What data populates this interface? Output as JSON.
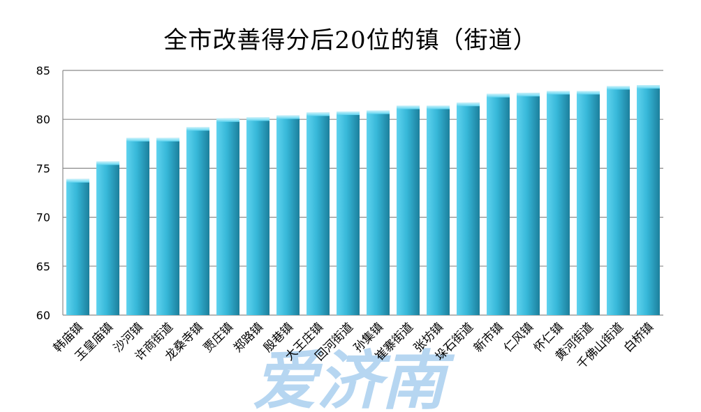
{
  "chart_data": {
    "type": "bar",
    "title": "全市改善得分后20位的镇（街道）",
    "xlabel": "",
    "ylabel": "",
    "ylim": [
      60,
      85
    ],
    "yticks": [
      60,
      65,
      70,
      75,
      80,
      85
    ],
    "grid": true,
    "legend": "none",
    "categories": [
      "韩庙镇",
      "玉皇庙镇",
      "沙河镇",
      "许商街道",
      "龙桑寺镇",
      "贾庄镇",
      "郑路镇",
      "殷巷镇",
      "大王庄镇",
      "回河街道",
      "孙集镇",
      "崔寨街道",
      "张坊镇",
      "垛石街道",
      "新市镇",
      "仁风镇",
      "怀仁镇",
      "黄河街道",
      "千佛山街道",
      "白桥镇"
    ],
    "values": [
      73.9,
      75.7,
      78.1,
      78.1,
      79.2,
      80.1,
      80.2,
      80.4,
      80.7,
      80.8,
      80.9,
      81.4,
      81.4,
      81.7,
      82.6,
      82.7,
      82.9,
      82.9,
      83.4,
      83.5
    ],
    "colors": {
      "bar_light": "#5fd3ef",
      "bar_mid": "#36b7d8",
      "bar_dark": "#1c7f9c",
      "grid": "#8a8a8a"
    }
  },
  "watermark": {
    "text": "爱济南",
    "color": "#a9cfee"
  }
}
